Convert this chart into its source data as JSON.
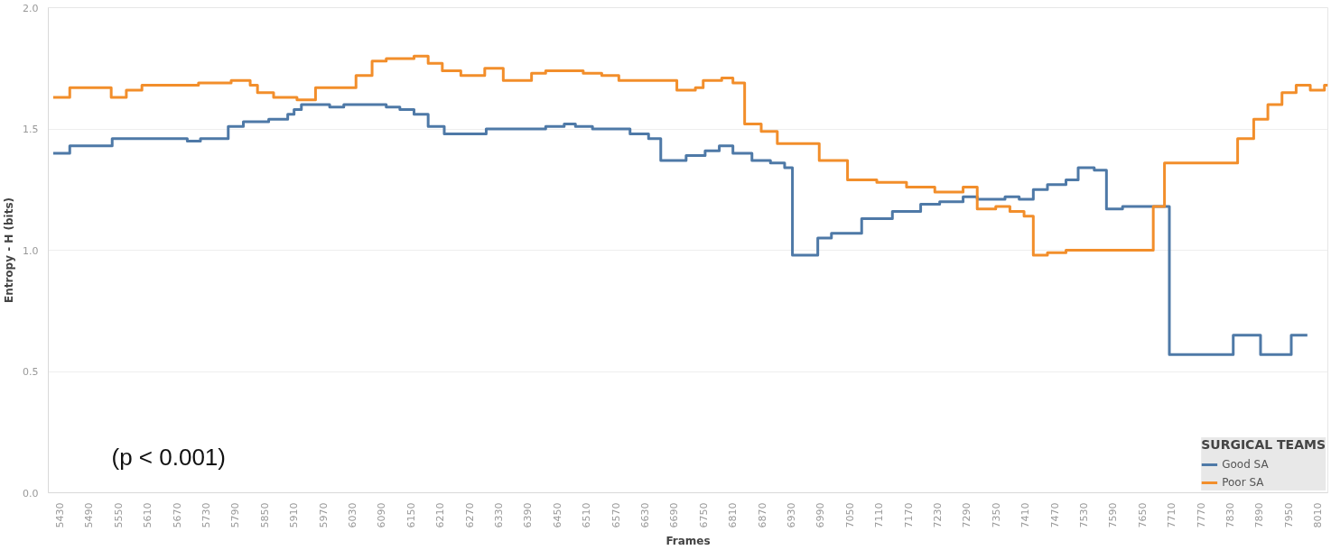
{
  "chart_data": {
    "type": "step",
    "xlabel": "Frames",
    "ylabel": "Entropy - H (bits)",
    "legend_title": "SURGICAL TEAMS",
    "annotations": [
      "(p < 0.001)"
    ],
    "xlim": [
      5407,
      8031
    ],
    "ylim": [
      0,
      2
    ],
    "xticks": [
      5430,
      5490,
      5550,
      5610,
      5670,
      5730,
      5790,
      5850,
      5910,
      5970,
      6030,
      6090,
      6150,
      6210,
      6270,
      6330,
      6390,
      6450,
      6510,
      6570,
      6630,
      6690,
      6750,
      6810,
      6870,
      6930,
      6990,
      7050,
      7110,
      7170,
      7230,
      7290,
      7350,
      7410,
      7470,
      7530,
      7590,
      7650,
      7710,
      7770,
      7830,
      7890,
      7950,
      8010
    ],
    "yticks": [
      {
        "value": 0,
        "label": "0.0"
      },
      0.5,
      {
        "value": 1,
        "label": "1.0"
      },
      1.5,
      {
        "value": 2,
        "label": "2.0"
      }
    ],
    "grid": "y",
    "legend": "bottom right",
    "line_style": "solid",
    "marker": "none",
    "series": [
      {
        "name": "Good SA",
        "color": "#4e79a7",
        "x": [
          5417,
          5451,
          5538,
          5692,
          5719,
          5776,
          5807,
          5859,
          5898,
          5911,
          5926,
          5984,
          6013,
          6100,
          6128,
          6157,
          6186,
          6219,
          6305,
          6427,
          6465,
          6488,
          6523,
          6600,
          6638,
          6663,
          6715,
          6754,
          6783,
          6811,
          6850,
          6888,
          6917,
          6933,
          6985,
          7013,
          7075,
          7138,
          7196,
          7235,
          7283,
          7312,
          7369,
          7398,
          7427,
          7456,
          7494,
          7519,
          7552,
          7577,
          7610,
          7706,
          7837,
          7893,
          7956,
          7989
        ],
        "values": [
          1.4,
          1.43,
          1.46,
          1.45,
          1.46,
          1.51,
          1.53,
          1.54,
          1.56,
          1.58,
          1.6,
          1.59,
          1.6,
          1.59,
          1.58,
          1.56,
          1.51,
          1.48,
          1.5,
          1.51,
          1.52,
          1.51,
          1.5,
          1.48,
          1.46,
          1.37,
          1.39,
          1.41,
          1.43,
          1.4,
          1.37,
          1.36,
          1.34,
          0.98,
          1.05,
          1.07,
          1.13,
          1.16,
          1.19,
          1.2,
          1.22,
          1.21,
          1.22,
          1.21,
          1.25,
          1.27,
          1.29,
          1.34,
          1.33,
          1.17,
          1.18,
          0.57,
          0.65,
          0.57,
          0.65,
          0.65
        ]
      },
      {
        "name": "Poor SA",
        "color": "#f28e2b",
        "x": [
          5417,
          5451,
          5536,
          5567,
          5599,
          5715,
          5782,
          5821,
          5836,
          5869,
          5917,
          5955,
          6038,
          6071,
          6100,
          6157,
          6186,
          6215,
          6253,
          6302,
          6340,
          6398,
          6427,
          6504,
          6542,
          6577,
          6696,
          6734,
          6750,
          6788,
          6811,
          6835,
          6869,
          6902,
          6988,
          7046,
          7106,
          7167,
          7225,
          7283,
          7312,
          7350,
          7379,
          7408,
          7427,
          7456,
          7494,
          7673,
          7696,
          7846,
          7879,
          7908,
          7937,
          7966,
          7995,
          8024,
          8031
        ],
        "values": [
          1.63,
          1.67,
          1.63,
          1.66,
          1.68,
          1.69,
          1.7,
          1.68,
          1.65,
          1.63,
          1.62,
          1.67,
          1.72,
          1.78,
          1.79,
          1.8,
          1.77,
          1.74,
          1.72,
          1.75,
          1.7,
          1.73,
          1.74,
          1.73,
          1.72,
          1.7,
          1.66,
          1.67,
          1.7,
          1.71,
          1.69,
          1.52,
          1.49,
          1.44,
          1.37,
          1.29,
          1.28,
          1.26,
          1.24,
          1.26,
          1.17,
          1.18,
          1.16,
          1.14,
          0.98,
          0.99,
          1.0,
          1.18,
          1.36,
          1.46,
          1.54,
          1.6,
          1.65,
          1.68,
          1.66,
          1.68,
          1.68
        ]
      }
    ]
  }
}
